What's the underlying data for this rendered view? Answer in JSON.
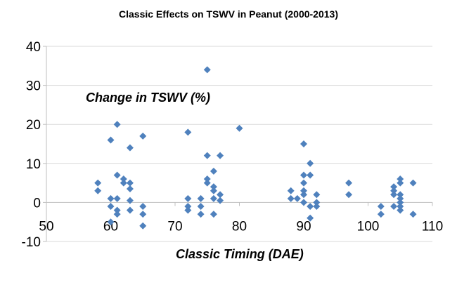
{
  "chart_data": {
    "type": "scatter",
    "title": "Classic Effects on TSWV in Peanut (2000-2013)",
    "xlabel": "Classic Timing (DAE)",
    "ylabel": "Change in TSWV (%)",
    "xlim": [
      50,
      110
    ],
    "ylim": [
      -10,
      40
    ],
    "xticks": [
      50,
      60,
      70,
      80,
      90,
      100,
      110
    ],
    "yticks": [
      -10,
      0,
      10,
      20,
      30,
      40
    ],
    "grid": "horizontal",
    "marker": "diamond",
    "marker_color": "#4F81BD",
    "series": [
      {
        "points": [
          [
            58,
            5
          ],
          [
            58,
            3
          ],
          [
            60,
            16
          ],
          [
            60,
            1
          ],
          [
            60,
            -1
          ],
          [
            60,
            -5
          ],
          [
            61,
            20
          ],
          [
            61,
            7
          ],
          [
            61,
            1
          ],
          [
            61,
            -2
          ],
          [
            61,
            -3
          ],
          [
            62,
            6
          ],
          [
            62,
            5
          ],
          [
            63,
            14
          ],
          [
            63,
            5
          ],
          [
            63,
            3.5
          ],
          [
            63,
            0.5
          ],
          [
            63,
            -2
          ],
          [
            65,
            17
          ],
          [
            65,
            -1
          ],
          [
            65,
            -3
          ],
          [
            65,
            -6
          ],
          [
            72,
            18
          ],
          [
            72,
            1
          ],
          [
            72,
            -1
          ],
          [
            72,
            -2
          ],
          [
            74,
            1
          ],
          [
            74,
            -1
          ],
          [
            74,
            -3
          ],
          [
            75,
            34
          ],
          [
            75,
            12
          ],
          [
            75,
            6
          ],
          [
            75,
            5
          ],
          [
            76,
            8
          ],
          [
            76,
            4
          ],
          [
            76,
            3
          ],
          [
            76,
            1
          ],
          [
            76,
            -3
          ],
          [
            77,
            12
          ],
          [
            77,
            2
          ],
          [
            77,
            0.5
          ],
          [
            80,
            19
          ],
          [
            88,
            3
          ],
          [
            88,
            1
          ],
          [
            89,
            1
          ],
          [
            90,
            15
          ],
          [
            90,
            7
          ],
          [
            90,
            5
          ],
          [
            90,
            3
          ],
          [
            90,
            2
          ],
          [
            90,
            0
          ],
          [
            91,
            10
          ],
          [
            91,
            7
          ],
          [
            91,
            -1
          ],
          [
            91,
            -4
          ],
          [
            92,
            2
          ],
          [
            92,
            0
          ],
          [
            92,
            -1
          ],
          [
            97,
            5
          ],
          [
            97,
            2
          ],
          [
            102,
            -1
          ],
          [
            102,
            -3
          ],
          [
            104,
            4
          ],
          [
            104,
            3
          ],
          [
            104,
            2
          ],
          [
            104,
            -1
          ],
          [
            105,
            6
          ],
          [
            105,
            5
          ],
          [
            105,
            2
          ],
          [
            105,
            1
          ],
          [
            105,
            0
          ],
          [
            105,
            -1
          ],
          [
            105,
            -2
          ],
          [
            107,
            5
          ],
          [
            107,
            -3
          ]
        ]
      }
    ]
  }
}
